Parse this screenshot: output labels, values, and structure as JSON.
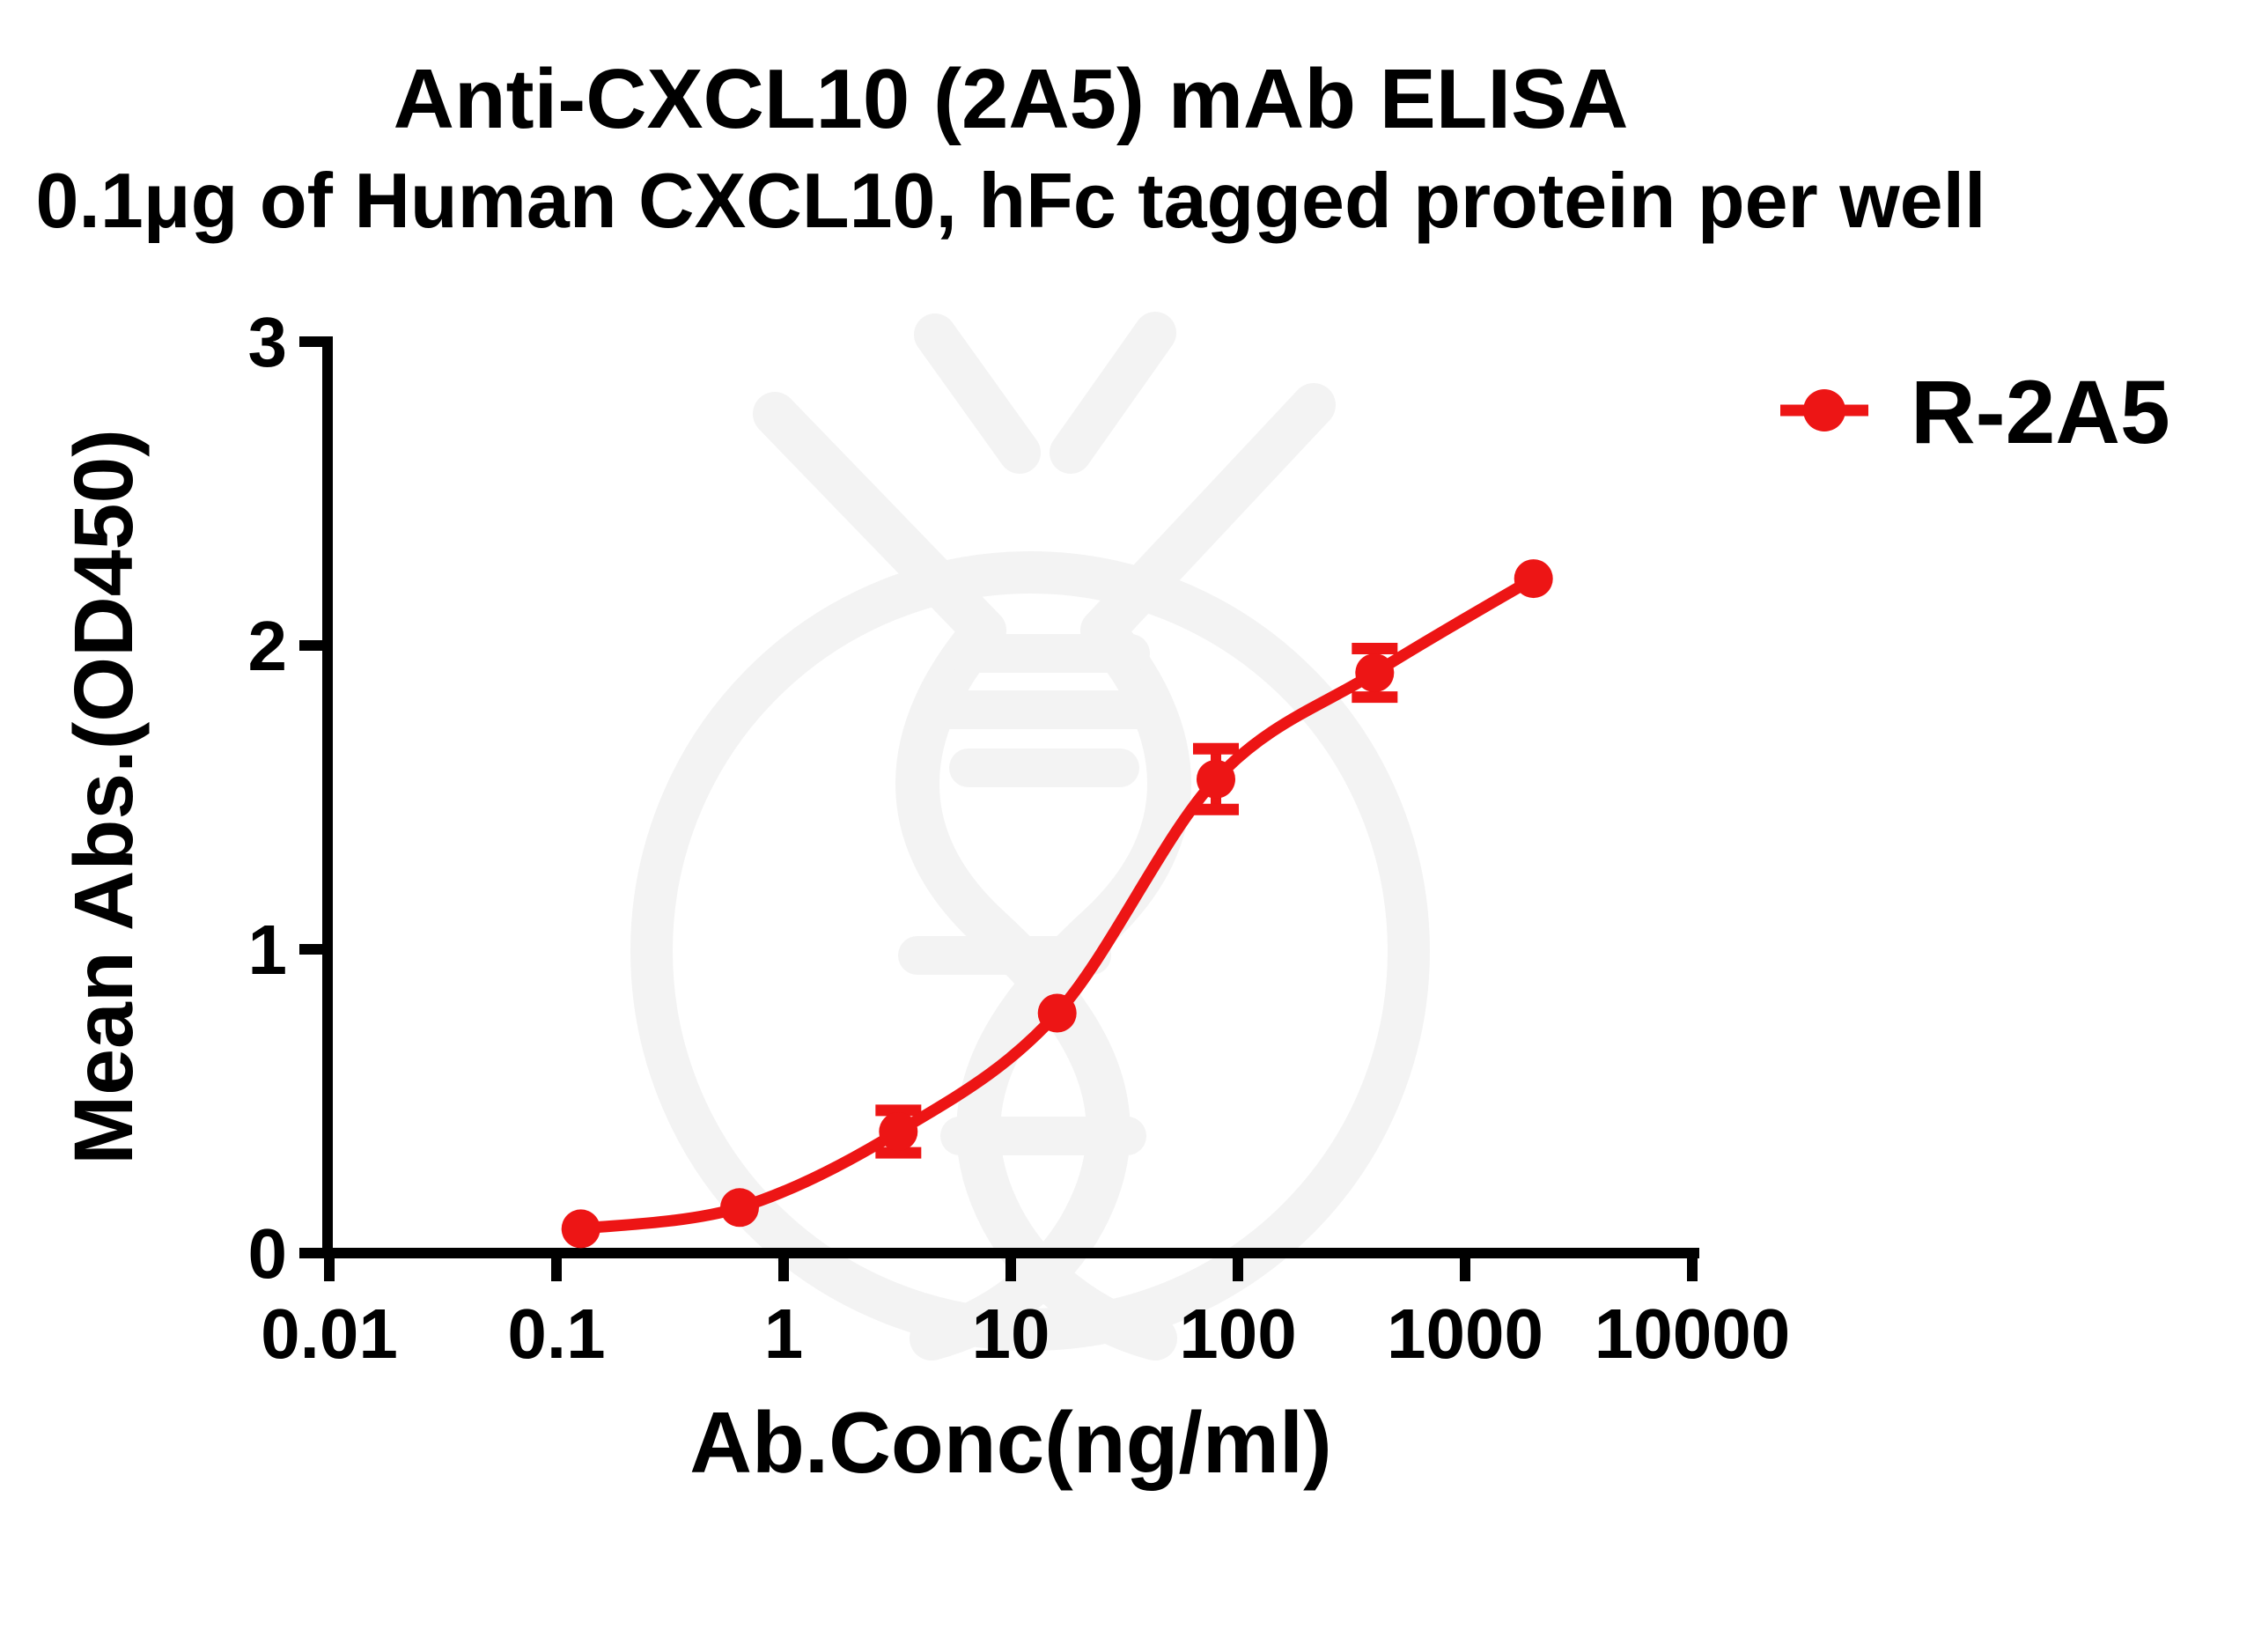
{
  "chart_data": {
    "type": "scatter",
    "title": "Anti-CXCL10 (2A5) mAb ELISA",
    "subtitle": "0.1μg of Human CXCL10, hFc tagged protein per well",
    "xlabel": "Ab.Conc(ng/ml)",
    "ylabel": "Mean Abs.(OD450)",
    "x_scale": "log10",
    "xlim": [
      0.01,
      10000
    ],
    "ylim": [
      0,
      3
    ],
    "x_ticks": [
      "0.01",
      "0.1",
      "1",
      "10",
      "100",
      "1000",
      "10000"
    ],
    "y_ticks": [
      "0",
      "1",
      "2",
      "3"
    ],
    "grid": false,
    "legend": {
      "position": "top-right",
      "label": "R-2A5"
    },
    "series": [
      {
        "name": "R-2A5",
        "color": "#ED1515",
        "marker": "filled-circle",
        "line": "sigmoidal-dose-response-fit",
        "x": [
          0.128,
          0.64,
          3.2,
          16,
          80,
          400,
          2000
        ],
        "y": [
          0.08,
          0.15,
          0.4,
          0.79,
          1.56,
          1.91,
          2.22
        ],
        "y_err": [
          0,
          0,
          0.07,
          0,
          0.1,
          0.08,
          0
        ]
      }
    ],
    "watermark": "faint antibody / DNA double-helix logo"
  }
}
